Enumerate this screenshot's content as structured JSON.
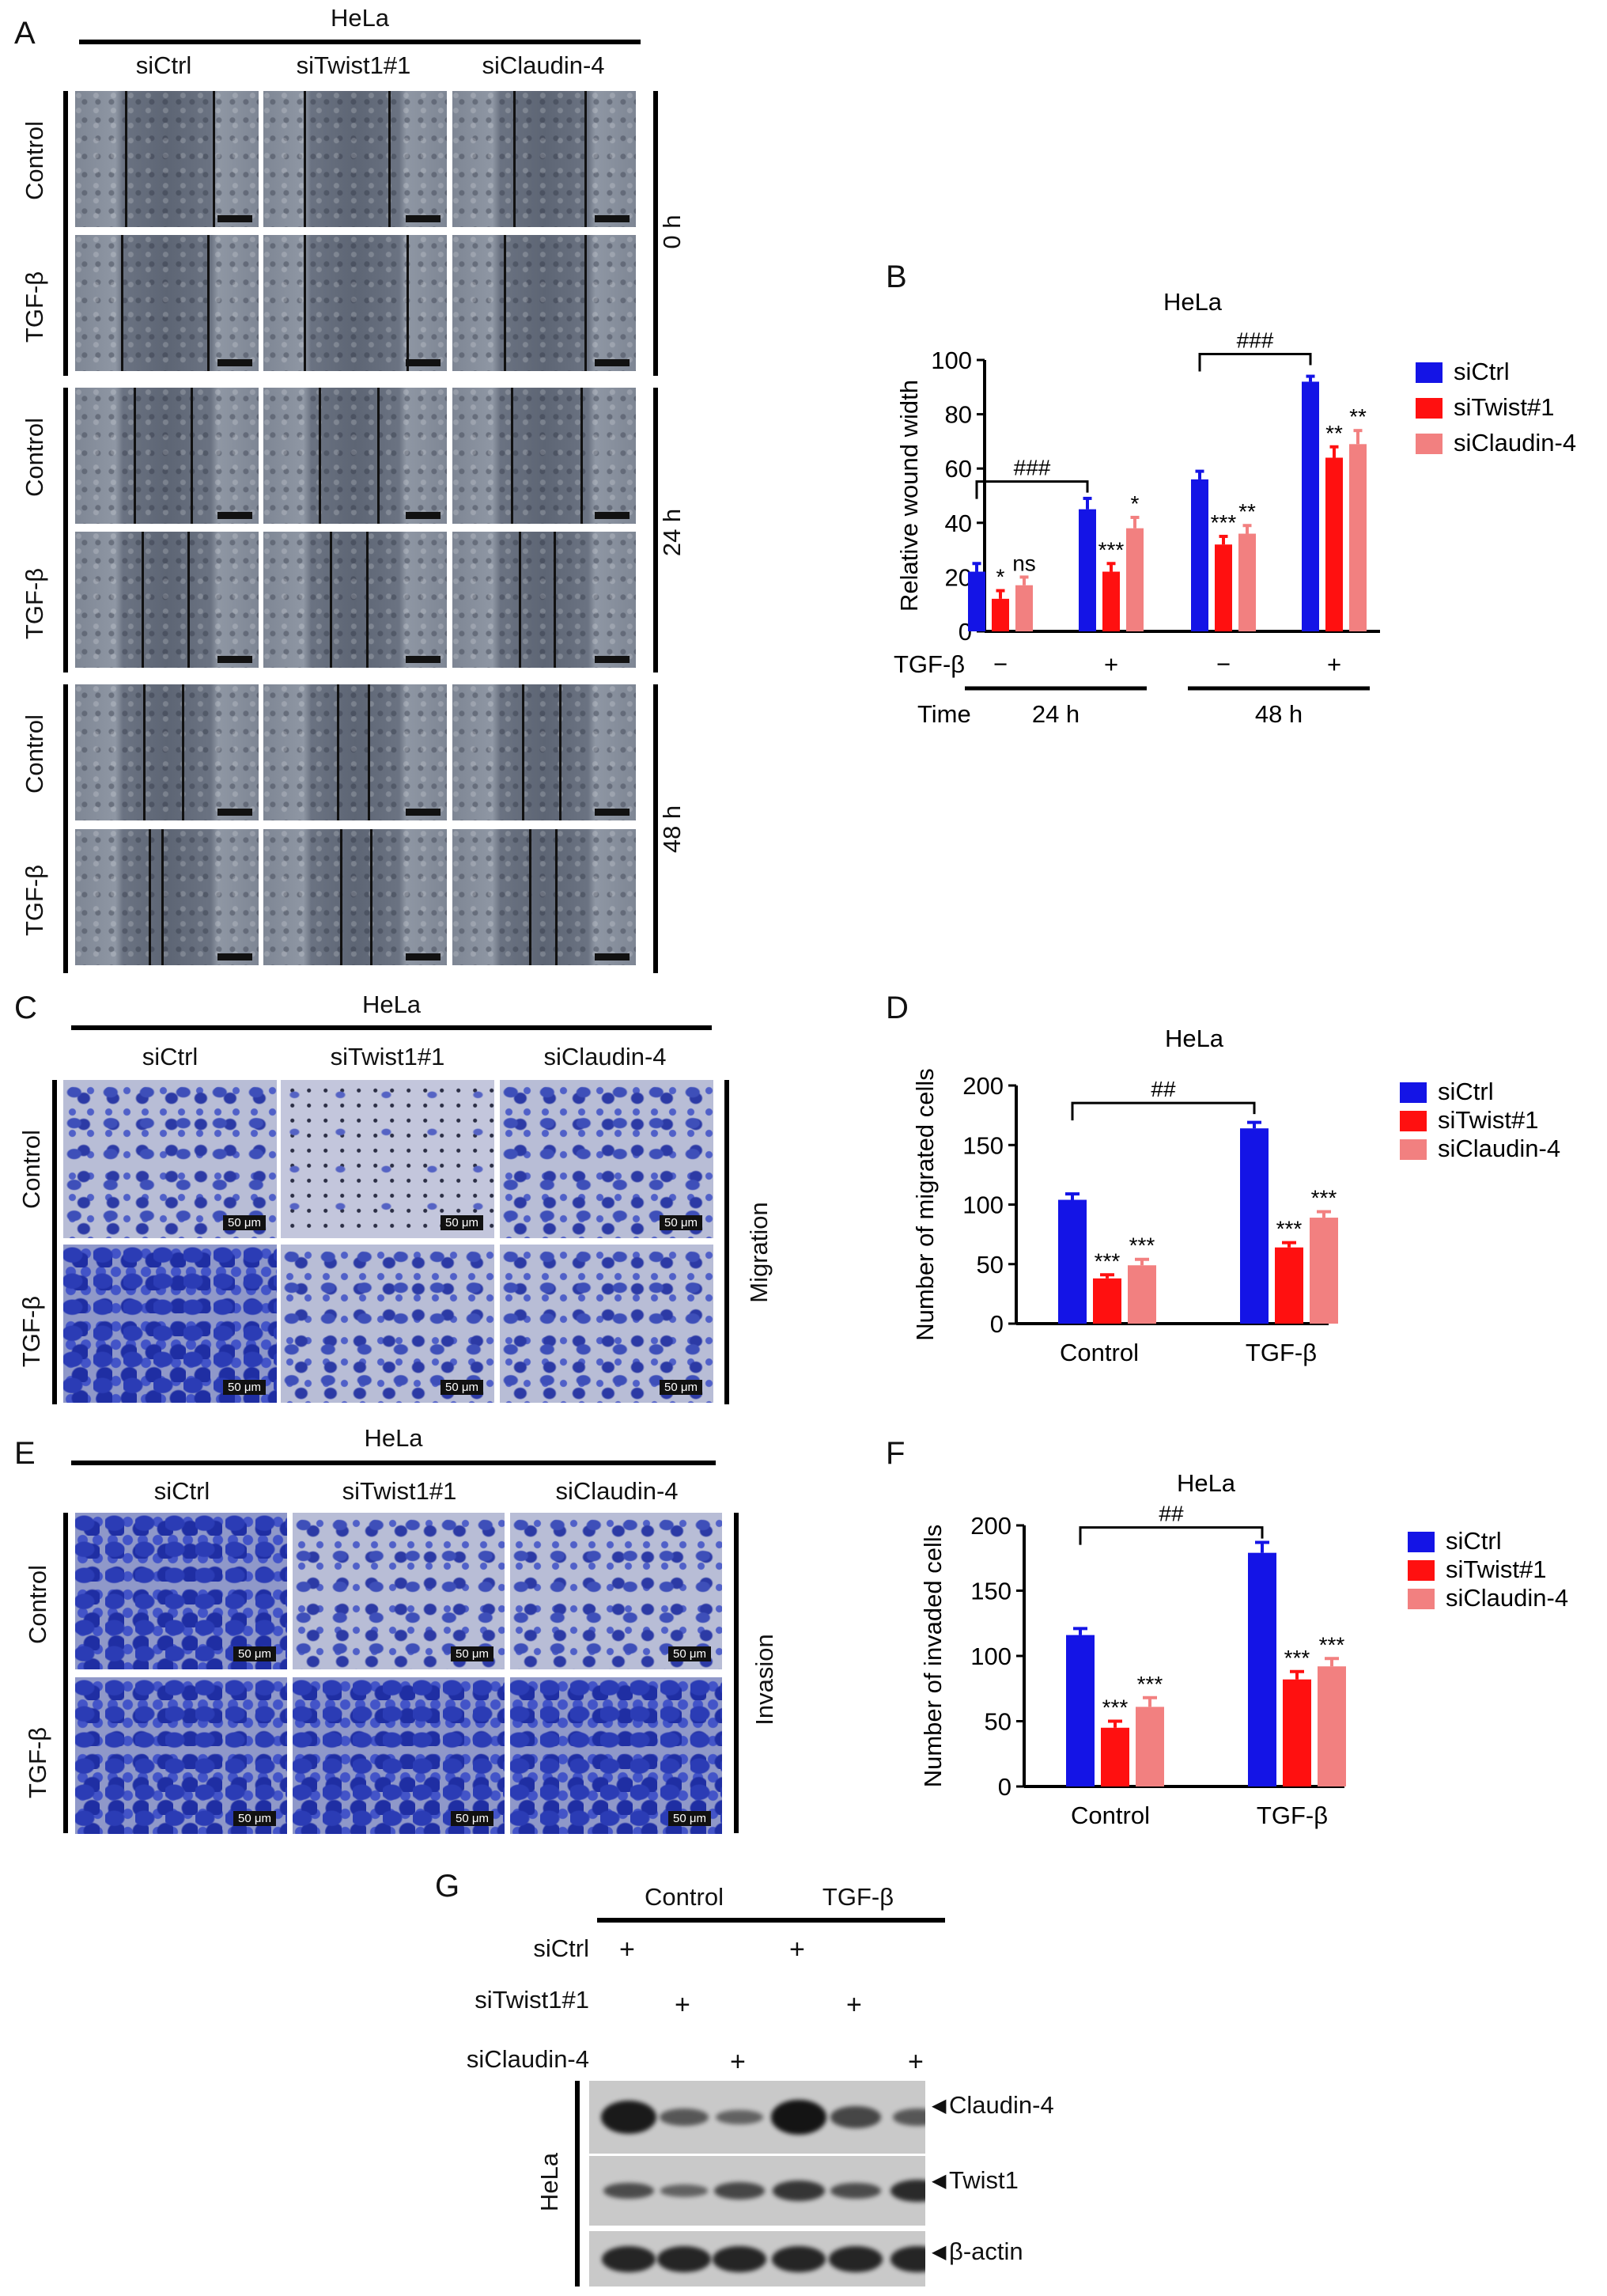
{
  "panels": {
    "A": {
      "label": "A",
      "cell_line": "HeLa",
      "columns": [
        "siCtrl",
        "siTwist1#1",
        "siClaudin-4"
      ],
      "row_labels": [
        "Control",
        "TGF-β",
        "Control",
        "TGF-β",
        "Control",
        "TGF-β"
      ],
      "time_labels": [
        "0 h",
        "24 h",
        "48 h"
      ]
    },
    "C": {
      "label": "C",
      "cell_line": "HeLa",
      "columns": [
        "siCtrl",
        "siTwist1#1",
        "siClaudin-4"
      ],
      "row_labels": [
        "Control",
        "TGF-β"
      ],
      "side_label": "Migration",
      "scale": "50 μm"
    },
    "E": {
      "label": "E",
      "cell_line": "HeLa",
      "columns": [
        "siCtrl",
        "siTwist1#1",
        "siClaudin-4"
      ],
      "row_labels": [
        "Control",
        "TGF-β"
      ],
      "side_label": "Invasion",
      "scale": "50 μm"
    },
    "G": {
      "label": "G",
      "groups": [
        "Control",
        "TGF-β"
      ],
      "rows": [
        "siCtrl",
        "siTwist1#1",
        "siClaudin-4"
      ],
      "plus": "+",
      "blots": [
        "Claudin-4",
        "Twist1",
        "β-actin"
      ],
      "side_label": "HeLa"
    }
  },
  "chart_data": [
    {
      "panel": "B",
      "type": "bar",
      "title": "HeLa",
      "ylabel": "Relative wound width",
      "ylim": [
        0,
        100
      ],
      "yticks": [
        0,
        20,
        40,
        60,
        80,
        100
      ],
      "categories": [
        "24 h −",
        "24 h +",
        "48 h −",
        "48 h +"
      ],
      "row_labels": {
        "tgf": "TGF-β",
        "time": "Time"
      },
      "tgf_signs": [
        "−",
        "+",
        "−",
        "+"
      ],
      "time_groups": [
        "24 h",
        "48 h"
      ],
      "series": [
        {
          "name": "siCtrl",
          "color": "#1414e6",
          "values": [
            22,
            45,
            56,
            92
          ],
          "errors": [
            3,
            4,
            3,
            2
          ],
          "stars": [
            "",
            "",
            "",
            ""
          ]
        },
        {
          "name": "siTwist#1",
          "color": "#ff1010",
          "values": [
            12,
            22,
            32,
            64
          ],
          "errors": [
            3,
            3,
            3,
            4
          ],
          "stars": [
            "*",
            "***",
            "***",
            "**"
          ]
        },
        {
          "name": "siClaudin-4",
          "color": "#f28080",
          "values": [
            17,
            38,
            36,
            69
          ],
          "errors": [
            3,
            4,
            3,
            5
          ],
          "stars": [
            "ns",
            "*",
            "**",
            "**"
          ]
        }
      ],
      "brackets": [
        {
          "from": 0,
          "to": 1,
          "label": "###"
        },
        {
          "from": 2,
          "to": 3,
          "label": "###"
        }
      ]
    },
    {
      "panel": "D",
      "type": "bar",
      "title": "HeLa",
      "ylabel": "Number of migrated cells",
      "ylim": [
        0,
        200
      ],
      "yticks": [
        0,
        50,
        100,
        150,
        200
      ],
      "categories": [
        "Control",
        "TGF-β"
      ],
      "series": [
        {
          "name": "siCtrl",
          "color": "#1414e6",
          "values": [
            104,
            164
          ],
          "errors": [
            5,
            5
          ],
          "stars": [
            "",
            ""
          ]
        },
        {
          "name": "siTwist#1",
          "color": "#ff1010",
          "values": [
            38,
            64
          ],
          "errors": [
            3,
            4
          ],
          "stars": [
            "***",
            "***"
          ]
        },
        {
          "name": "siClaudin-4",
          "color": "#f28080",
          "values": [
            49,
            89
          ],
          "errors": [
            5,
            5
          ],
          "stars": [
            "***",
            "***"
          ]
        }
      ],
      "brackets": [
        {
          "from": 0,
          "to": 1,
          "label": "##"
        }
      ]
    },
    {
      "panel": "F",
      "type": "bar",
      "title": "HeLa",
      "ylabel": "Number of invaded cells",
      "ylim": [
        0,
        200
      ],
      "yticks": [
        0,
        50,
        100,
        150,
        200
      ],
      "categories": [
        "Control",
        "TGF-β"
      ],
      "series": [
        {
          "name": "siCtrl",
          "color": "#1414e6",
          "values": [
            116,
            179
          ],
          "errors": [
            5,
            8
          ],
          "stars": [
            "",
            ""
          ]
        },
        {
          "name": "siTwist#1",
          "color": "#ff1010",
          "values": [
            45,
            82
          ],
          "errors": [
            5,
            6
          ],
          "stars": [
            "***",
            "***"
          ]
        },
        {
          "name": "siClaudin-4",
          "color": "#f28080",
          "values": [
            61,
            92
          ],
          "errors": [
            7,
            6
          ],
          "stars": [
            "***",
            "***"
          ]
        }
      ],
      "brackets": [
        {
          "from": 0,
          "to": 1,
          "label": "##"
        }
      ]
    }
  ]
}
